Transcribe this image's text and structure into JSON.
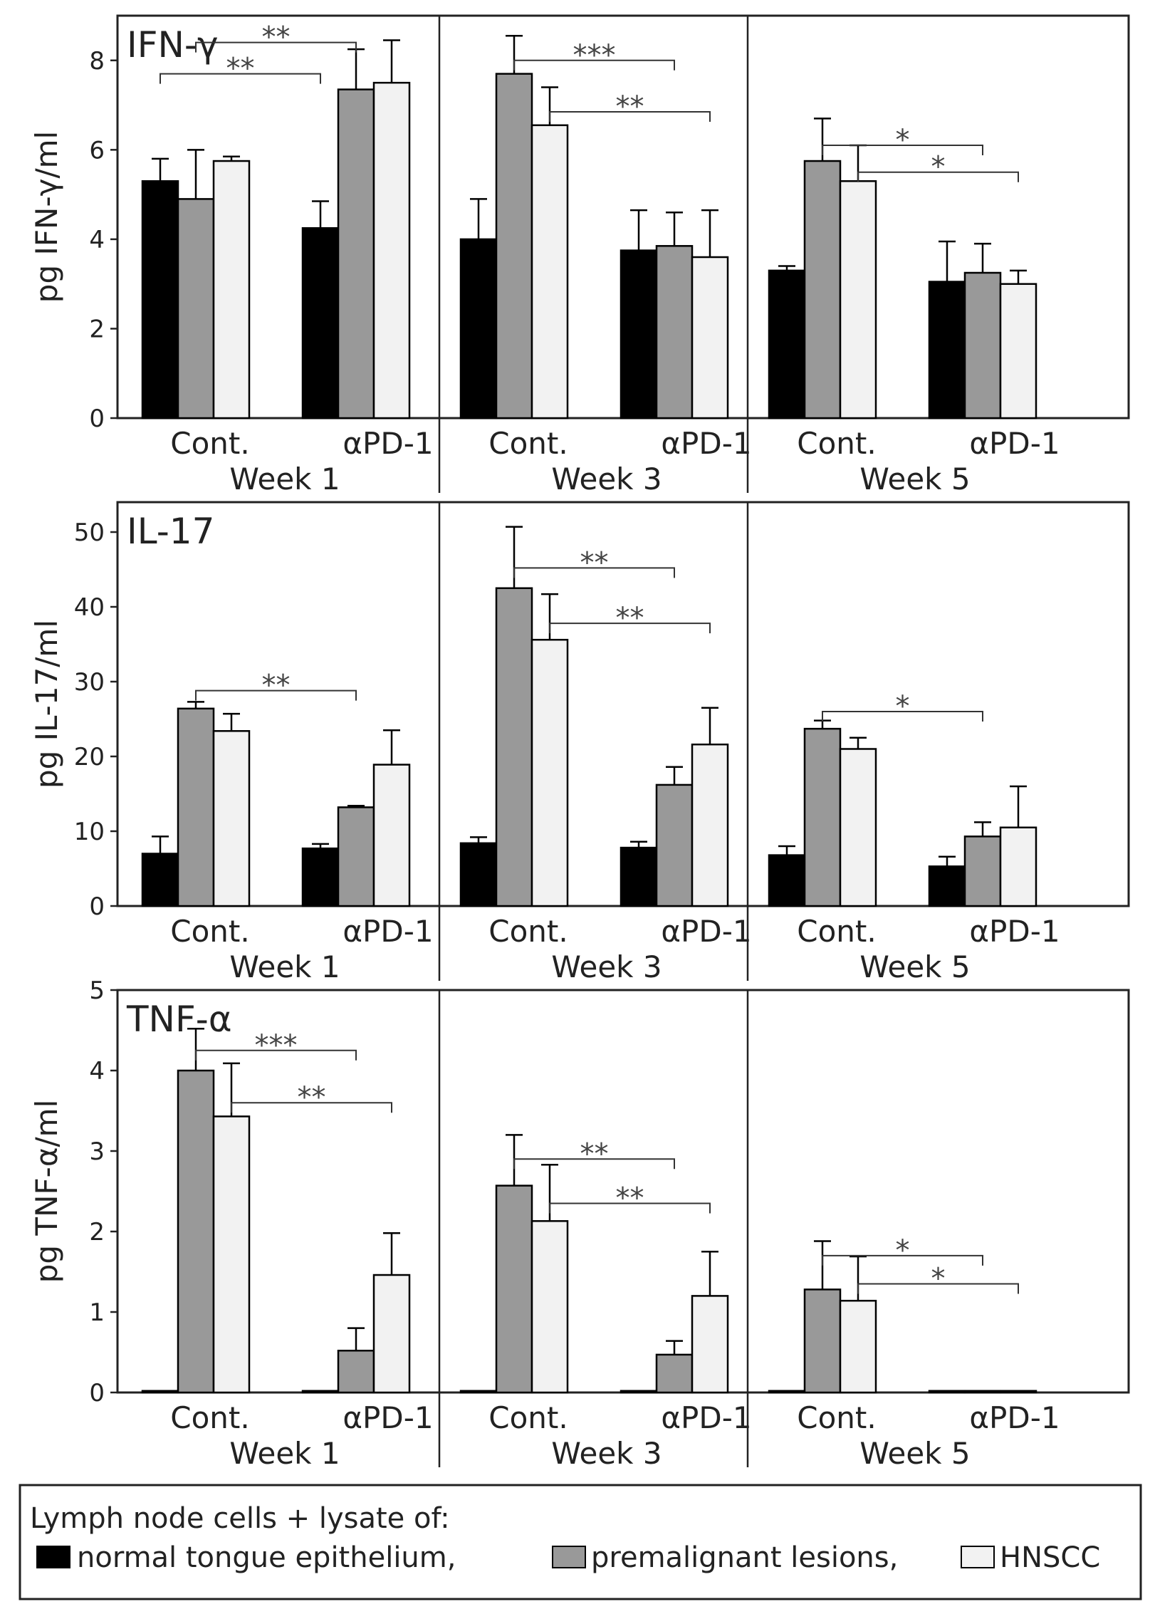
{
  "colors": {
    "normal_tongue_epithelium": "#000000",
    "premalignant_lesions": "#999999",
    "hnscc": "#f2f2f2",
    "frame": "#222222"
  },
  "legend": {
    "title": "Lymph node cells + lysate of:",
    "entries": [
      "normal tongue epithelium,",
      "premalignant lesions,",
      "HNSCC"
    ]
  },
  "chart_data": [
    {
      "type": "bar",
      "panel_title": "IFN-γ",
      "ylabel": "pg IFN-γ/ml",
      "ylim": [
        0,
        9
      ],
      "yticks": [
        0,
        2,
        4,
        6,
        8
      ],
      "weeks": [
        "Week 1",
        "Week 3",
        "Week 5"
      ],
      "conditions": [
        "Cont.",
        "αPD-1"
      ],
      "series": [
        {
          "name": "normal tongue epithelium",
          "values": [
            [
              5.3,
              4.25
            ],
            [
              4.0,
              3.75
            ],
            [
              3.3,
              3.05
            ]
          ],
          "errors": [
            [
              0.5,
              0.6
            ],
            [
              0.9,
              0.9
            ],
            [
              0.1,
              0.9
            ]
          ]
        },
        {
          "name": "premalignant lesions",
          "values": [
            [
              4.9,
              7.35
            ],
            [
              7.7,
              3.85
            ],
            [
              5.75,
              3.25
            ]
          ],
          "errors": [
            [
              1.1,
              0.9
            ],
            [
              0.85,
              0.75
            ],
            [
              0.95,
              0.65
            ]
          ]
        },
        {
          "name": "HNSCC",
          "values": [
            [
              5.75,
              7.5
            ],
            [
              6.55,
              3.6
            ],
            [
              5.3,
              3.0
            ]
          ],
          "errors": [
            [
              0.1,
              0.95
            ],
            [
              0.85,
              1.05
            ],
            [
              0.8,
              0.3
            ]
          ]
        }
      ],
      "significance": [
        {
          "week": 0,
          "from_series": 1,
          "to_series": 1,
          "label": "**",
          "level": 8.4
        },
        {
          "week": 0,
          "from_series": 0,
          "to_series": 0,
          "label": "**",
          "level": 7.7
        },
        {
          "week": 1,
          "from_series": 1,
          "to_series": 1,
          "label": "***",
          "level": 8.0
        },
        {
          "week": 1,
          "from_series": 2,
          "to_series": 2,
          "label": "**",
          "level": 6.85
        },
        {
          "week": 2,
          "from_series": 1,
          "to_series": 1,
          "label": "*",
          "level": 6.1
        },
        {
          "week": 2,
          "from_series": 2,
          "to_series": 2,
          "label": "*",
          "level": 5.5
        }
      ]
    },
    {
      "type": "bar",
      "panel_title": "IL-17",
      "ylabel": "pg IL-17/ml",
      "ylim": [
        0,
        54
      ],
      "yticks": [
        0,
        10,
        20,
        30,
        40,
        50
      ],
      "weeks": [
        "Week 1",
        "Week 3",
        "Week 5"
      ],
      "conditions": [
        "Cont.",
        "αPD-1"
      ],
      "series": [
        {
          "name": "normal tongue epithelium",
          "values": [
            [
              7.0,
              7.7
            ],
            [
              8.4,
              7.8
            ],
            [
              6.8,
              5.3
            ]
          ],
          "errors": [
            [
              2.3,
              0.6
            ],
            [
              0.8,
              0.8
            ],
            [
              1.2,
              1.3
            ]
          ]
        },
        {
          "name": "premalignant lesions",
          "values": [
            [
              26.4,
              13.2
            ],
            [
              42.5,
              16.2
            ],
            [
              23.7,
              9.3
            ]
          ],
          "errors": [
            [
              0.9,
              0.2
            ],
            [
              8.2,
              2.4
            ],
            [
              1.1,
              1.9
            ]
          ]
        },
        {
          "name": "HNSCC",
          "values": [
            [
              23.4,
              18.9
            ],
            [
              35.6,
              21.6
            ],
            [
              21.0,
              10.5
            ]
          ],
          "errors": [
            [
              2.3,
              4.6
            ],
            [
              6.1,
              4.9
            ],
            [
              1.5,
              5.5
            ]
          ]
        }
      ],
      "significance": [
        {
          "week": 0,
          "from_series": 1,
          "to_series": 1,
          "label": "**",
          "level": 28.8
        },
        {
          "week": 1,
          "from_series": 1,
          "to_series": 1,
          "label": "**",
          "level": 45.2
        },
        {
          "week": 1,
          "from_series": 2,
          "to_series": 2,
          "label": "**",
          "level": 37.8
        },
        {
          "week": 2,
          "from_series": 1,
          "to_series": 1,
          "label": "*",
          "level": 26.0
        }
      ]
    },
    {
      "type": "bar",
      "panel_title": "TNF-α",
      "ylabel": "pg TNF-α/ml",
      "ylim": [
        0,
        5
      ],
      "yticks": [
        0,
        1,
        2,
        3,
        4,
        5
      ],
      "weeks": [
        "Week 1",
        "Week 3",
        "Week 5"
      ],
      "conditions": [
        "Cont.",
        "αPD-1"
      ],
      "series": [
        {
          "name": "normal tongue epithelium",
          "values": [
            [
              0.02,
              0.02
            ],
            [
              0.02,
              0.02
            ],
            [
              0.02,
              0.02
            ]
          ],
          "errors": [
            [
              0,
              0
            ],
            [
              0,
              0
            ],
            [
              0,
              0
            ]
          ]
        },
        {
          "name": "premalignant lesions",
          "values": [
            [
              4.0,
              0.52
            ],
            [
              2.57,
              0.47
            ],
            [
              1.28,
              0.02
            ]
          ],
          "errors": [
            [
              0.52,
              0.28
            ],
            [
              0.63,
              0.17
            ],
            [
              0.6,
              0
            ]
          ]
        },
        {
          "name": "HNSCC",
          "values": [
            [
              3.43,
              1.46
            ],
            [
              2.13,
              1.2
            ],
            [
              1.14,
              0.02
            ]
          ],
          "errors": [
            [
              0.66,
              0.52
            ],
            [
              0.7,
              0.55
            ],
            [
              0.55,
              0
            ]
          ]
        }
      ],
      "significance": [
        {
          "week": 0,
          "from_series": 1,
          "to_series": 1,
          "label": "***",
          "level": 4.25
        },
        {
          "week": 0,
          "from_series": 2,
          "to_series": 2,
          "label": "**",
          "level": 3.6
        },
        {
          "week": 1,
          "from_series": 1,
          "to_series": 1,
          "label": "**",
          "level": 2.9
        },
        {
          "week": 1,
          "from_series": 2,
          "to_series": 2,
          "label": "**",
          "level": 2.35
        },
        {
          "week": 2,
          "from_series": 1,
          "to_series": 1,
          "label": "*",
          "level": 1.7
        },
        {
          "week": 2,
          "from_series": 2,
          "to_series": 2,
          "label": "*",
          "level": 1.35
        }
      ]
    }
  ]
}
